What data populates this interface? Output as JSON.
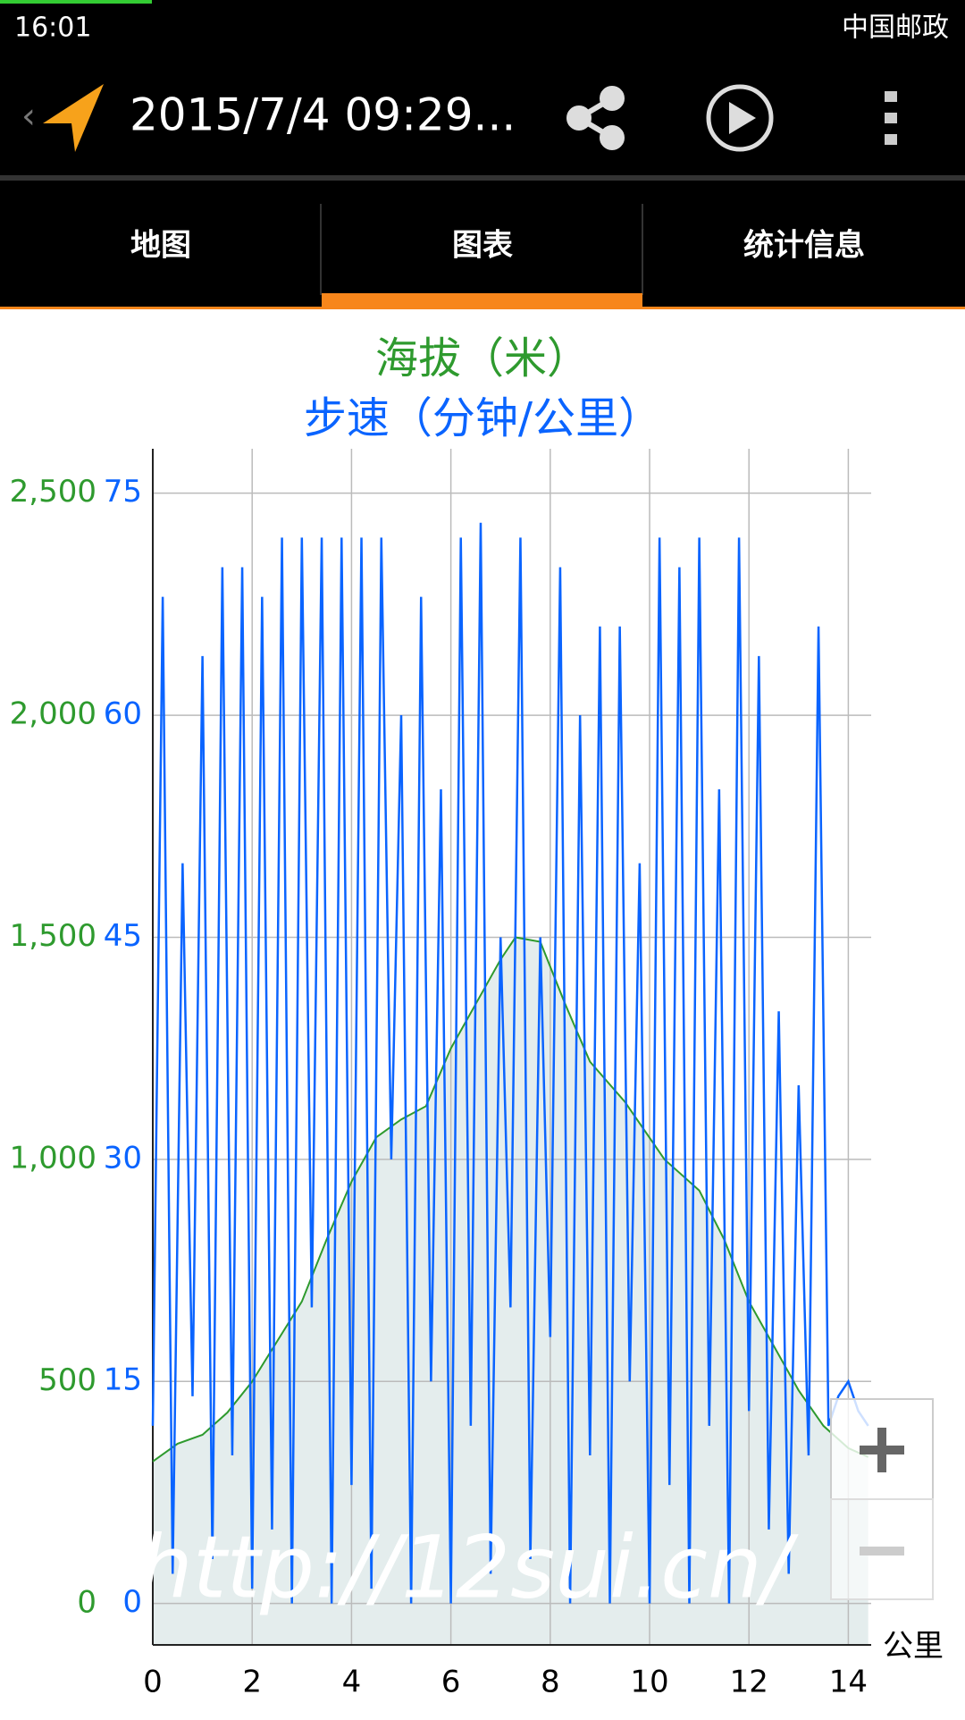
{
  "status_bar": {
    "time": "16:01",
    "carrier": "中国邮政"
  },
  "app_bar": {
    "title": "2015/7/4 09:29..."
  },
  "tabs": [
    "地图",
    "图表",
    "统计信息"
  ],
  "watermark": "http://12sui.cn/",
  "chart_data": {
    "type": "line",
    "title": "海拔（米）",
    "subtitle": "步速（分钟/公里）",
    "x_label": "公里",
    "xlim": [
      0,
      14.46
    ],
    "xticks": [
      0,
      2,
      4,
      6,
      8,
      10,
      12,
      14
    ],
    "ylim": [
      -2.8,
      78
    ],
    "yticks": [
      0,
      15,
      30,
      45,
      60,
      75
    ],
    "y2lim": [
      -93,
      2600
    ],
    "y2ticks": [
      0,
      500,
      {
        "value": 1000,
        "label": "1,000"
      },
      {
        "value": 1500,
        "label": "1,500"
      },
      {
        "value": 2000,
        "label": "2,000"
      },
      {
        "value": 2500,
        "label": "2,500"
      }
    ],
    "grid": true,
    "series": [
      {
        "name": "海拔",
        "axis": "y2",
        "color": "#2e9a2e",
        "fill": "#e4eded",
        "x": [
          0,
          0.5,
          1,
          1.5,
          2,
          2.5,
          3,
          3.5,
          4,
          4.5,
          5,
          5.5,
          6,
          6.5,
          7,
          7.3,
          7.8,
          8.3,
          8.8,
          9.5,
          10.3,
          11,
          11.5,
          12,
          12.5,
          13,
          13.5,
          14,
          14.4
        ],
        "values": [
          320,
          360,
          380,
          430,
          500,
          590,
          680,
          820,
          950,
          1050,
          1090,
          1120,
          1250,
          1350,
          1450,
          1500,
          1490,
          1350,
          1220,
          1130,
          1000,
          930,
          820,
          680,
          580,
          480,
          400,
          350,
          330
        ]
      },
      {
        "name": "步速",
        "axis": "y",
        "color": "#0a64ff",
        "x": [
          0,
          0.2,
          0.4,
          0.6,
          0.8,
          1,
          1.2,
          1.4,
          1.6,
          1.8,
          2,
          2.2,
          2.4,
          2.6,
          2.8,
          3,
          3.2,
          3.4,
          3.6,
          3.8,
          4,
          4.2,
          4.4,
          4.6,
          4.8,
          5,
          5.2,
          5.4,
          5.6,
          5.8,
          6,
          6.2,
          6.4,
          6.6,
          6.8,
          7,
          7.2,
          7.4,
          7.6,
          7.8,
          8,
          8.2,
          8.4,
          8.6,
          8.8,
          9,
          9.2,
          9.4,
          9.6,
          9.8,
          10,
          10.2,
          10.4,
          10.6,
          10.8,
          11,
          11.2,
          11.4,
          11.6,
          11.8,
          12,
          12.2,
          12.4,
          12.6,
          12.8,
          13,
          13.2,
          13.4,
          13.6,
          13.8,
          14,
          14.2,
          14.4
        ],
        "values": [
          12,
          68,
          2,
          50,
          14,
          64,
          3,
          70,
          10,
          70,
          1,
          68,
          5,
          72,
          0,
          72,
          20,
          72,
          0,
          72,
          8,
          72,
          1,
          72,
          30,
          60,
          0,
          68,
          15,
          55,
          0,
          72,
          12,
          73,
          2,
          45,
          20,
          72,
          3,
          45,
          18,
          70,
          0,
          60,
          10,
          66,
          0,
          66,
          15,
          50,
          0,
          72,
          8,
          70,
          0,
          72,
          12,
          55,
          0,
          72,
          13,
          64,
          5,
          40,
          2,
          35,
          10,
          66,
          12,
          14,
          15,
          13,
          12
        ]
      }
    ]
  }
}
